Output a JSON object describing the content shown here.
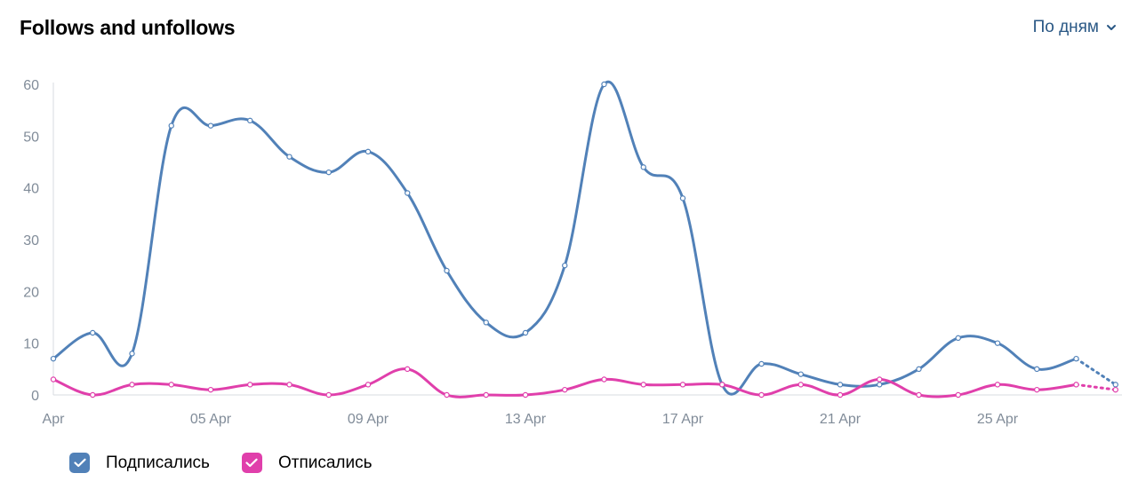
{
  "header": {
    "title": "Follows and unfollows",
    "period_label": "По дням"
  },
  "icons": {
    "period": "chevron-down-icon",
    "legend": "checkbox-checked-icon"
  },
  "colors": {
    "accent": "#2a5885",
    "axis_text": "#818c99",
    "grid_line": "#d7dbe0"
  },
  "chart_data": {
    "type": "line",
    "title": "Follows and unfollows",
    "xlabel": "",
    "ylabel": "",
    "x": [
      "01 Apr",
      "02 Apr",
      "03 Apr",
      "04 Apr",
      "05 Apr",
      "06 Apr",
      "07 Apr",
      "08 Apr",
      "09 Apr",
      "10 Apr",
      "11 Apr",
      "12 Apr",
      "13 Apr",
      "14 Apr",
      "15 Apr",
      "16 Apr",
      "17 Apr",
      "18 Apr",
      "19 Apr",
      "20 Apr",
      "21 Apr",
      "22 Apr",
      "23 Apr",
      "24 Apr",
      "25 Apr",
      "26 Apr",
      "27 Apr",
      "28 Apr"
    ],
    "x_tick_labels": [
      "Apr",
      "05 Apr",
      "09 Apr",
      "13 Apr",
      "17 Apr",
      "21 Apr",
      "25 Apr"
    ],
    "x_tick_days": [
      1,
      5,
      9,
      13,
      17,
      21,
      25
    ],
    "y_ticks": [
      0,
      10,
      20,
      30,
      40,
      50,
      60
    ],
    "ylim": [
      0,
      60
    ],
    "grid": false,
    "legend_position": "bottom-left",
    "series": [
      {
        "name": "Подписались",
        "color": "#5181b8",
        "values": [
          7,
          12,
          8,
          52,
          52,
          53,
          46,
          43,
          47,
          39,
          24,
          14,
          12,
          25,
          60,
          44,
          38,
          2,
          6,
          4,
          2,
          2,
          5,
          11,
          10,
          5,
          7,
          2
        ],
        "last_point_partial": true
      },
      {
        "name": "Отписались",
        "color": "#e03fab",
        "values": [
          3,
          0,
          2,
          2,
          1,
          2,
          2,
          0,
          2,
          5,
          0,
          0,
          0,
          1,
          3,
          2,
          2,
          2,
          0,
          2,
          0,
          3,
          0,
          0,
          2,
          1,
          2,
          1
        ],
        "last_point_partial": true
      }
    ]
  }
}
